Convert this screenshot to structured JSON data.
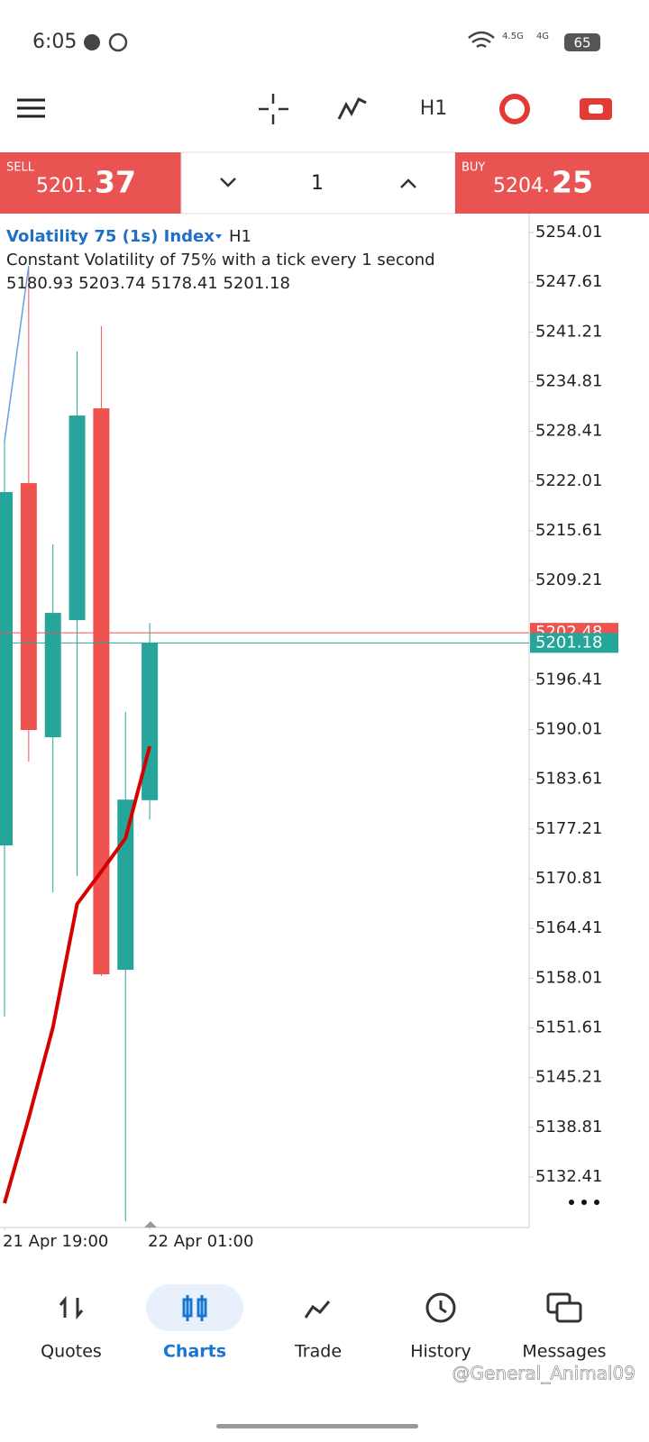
{
  "status_bar": {
    "time": "6:05",
    "network_1": "4.5G",
    "network_2": "4G",
    "battery": "65"
  },
  "toolbar": {
    "timeframe": "H1"
  },
  "trade_bar": {
    "sell_label": "SELL",
    "sell_price_main": "5201.",
    "sell_price_frac": "37",
    "volume": "1",
    "buy_label": "BUY",
    "buy_price_main": "5204.",
    "buy_price_frac": "25"
  },
  "chart_data": {
    "type": "candlestick",
    "title": "Volatility 75 (1s) Index",
    "timeframe": "H1",
    "subtitle": "Constant Volatility of 75% with a tick every 1 second",
    "ohlc_text": "5180.93 5203.74 5178.41 5201.18",
    "categories": [
      "21 Apr 19:00",
      null,
      null,
      null,
      null,
      null,
      "22 Apr 01:00"
    ],
    "open": [
      5175.1,
      5221.75,
      5189.03,
      5204.11,
      5231.38,
      5159.09,
      5180.93
    ],
    "high": [
      5227.09,
      5249.72,
      5213.86,
      5238.69,
      5241.94,
      5192.28,
      5203.74
    ],
    "low": [
      5153.06,
      5185.9,
      5169.07,
      5171.16,
      5158.28,
      5126.72,
      5178.41
    ],
    "close": [
      5220.6,
      5189.96,
      5205.04,
      5230.45,
      5158.51,
      5181.0,
      5201.18
    ],
    "up_color": "#26a69a",
    "down_color": "#ef5350",
    "overlays": [
      {
        "color": "#d50000",
        "values": [
          5129.04,
          5140.0,
          5151.66,
          5167.56,
          5171.74,
          5176.03,
          5187.87
        ]
      },
      {
        "color": "#64a0e0",
        "values": [
          5227.09,
          5249.72,
          null,
          null,
          null,
          null,
          null
        ]
      }
    ],
    "ylim": [
      5125.91,
      5256.45
    ],
    "yticks": [
      5254.01,
      5247.61,
      5241.21,
      5234.81,
      5228.41,
      5222.01,
      5215.61,
      5209.21,
      5196.41,
      5190.01,
      5183.61,
      5177.21,
      5170.81,
      5164.41,
      5158.01,
      5151.61,
      5145.21,
      5138.81,
      5132.41
    ],
    "ask_line": {
      "value": 5202.48,
      "color": "#ef5350"
    },
    "bid_line": {
      "value": 5201.18,
      "color": "#26a69a"
    }
  },
  "bottom_nav": {
    "items": [
      "Quotes",
      "Charts",
      "Trade",
      "History",
      "Messages"
    ],
    "active": 1
  },
  "watermark": "@General_Animal09"
}
